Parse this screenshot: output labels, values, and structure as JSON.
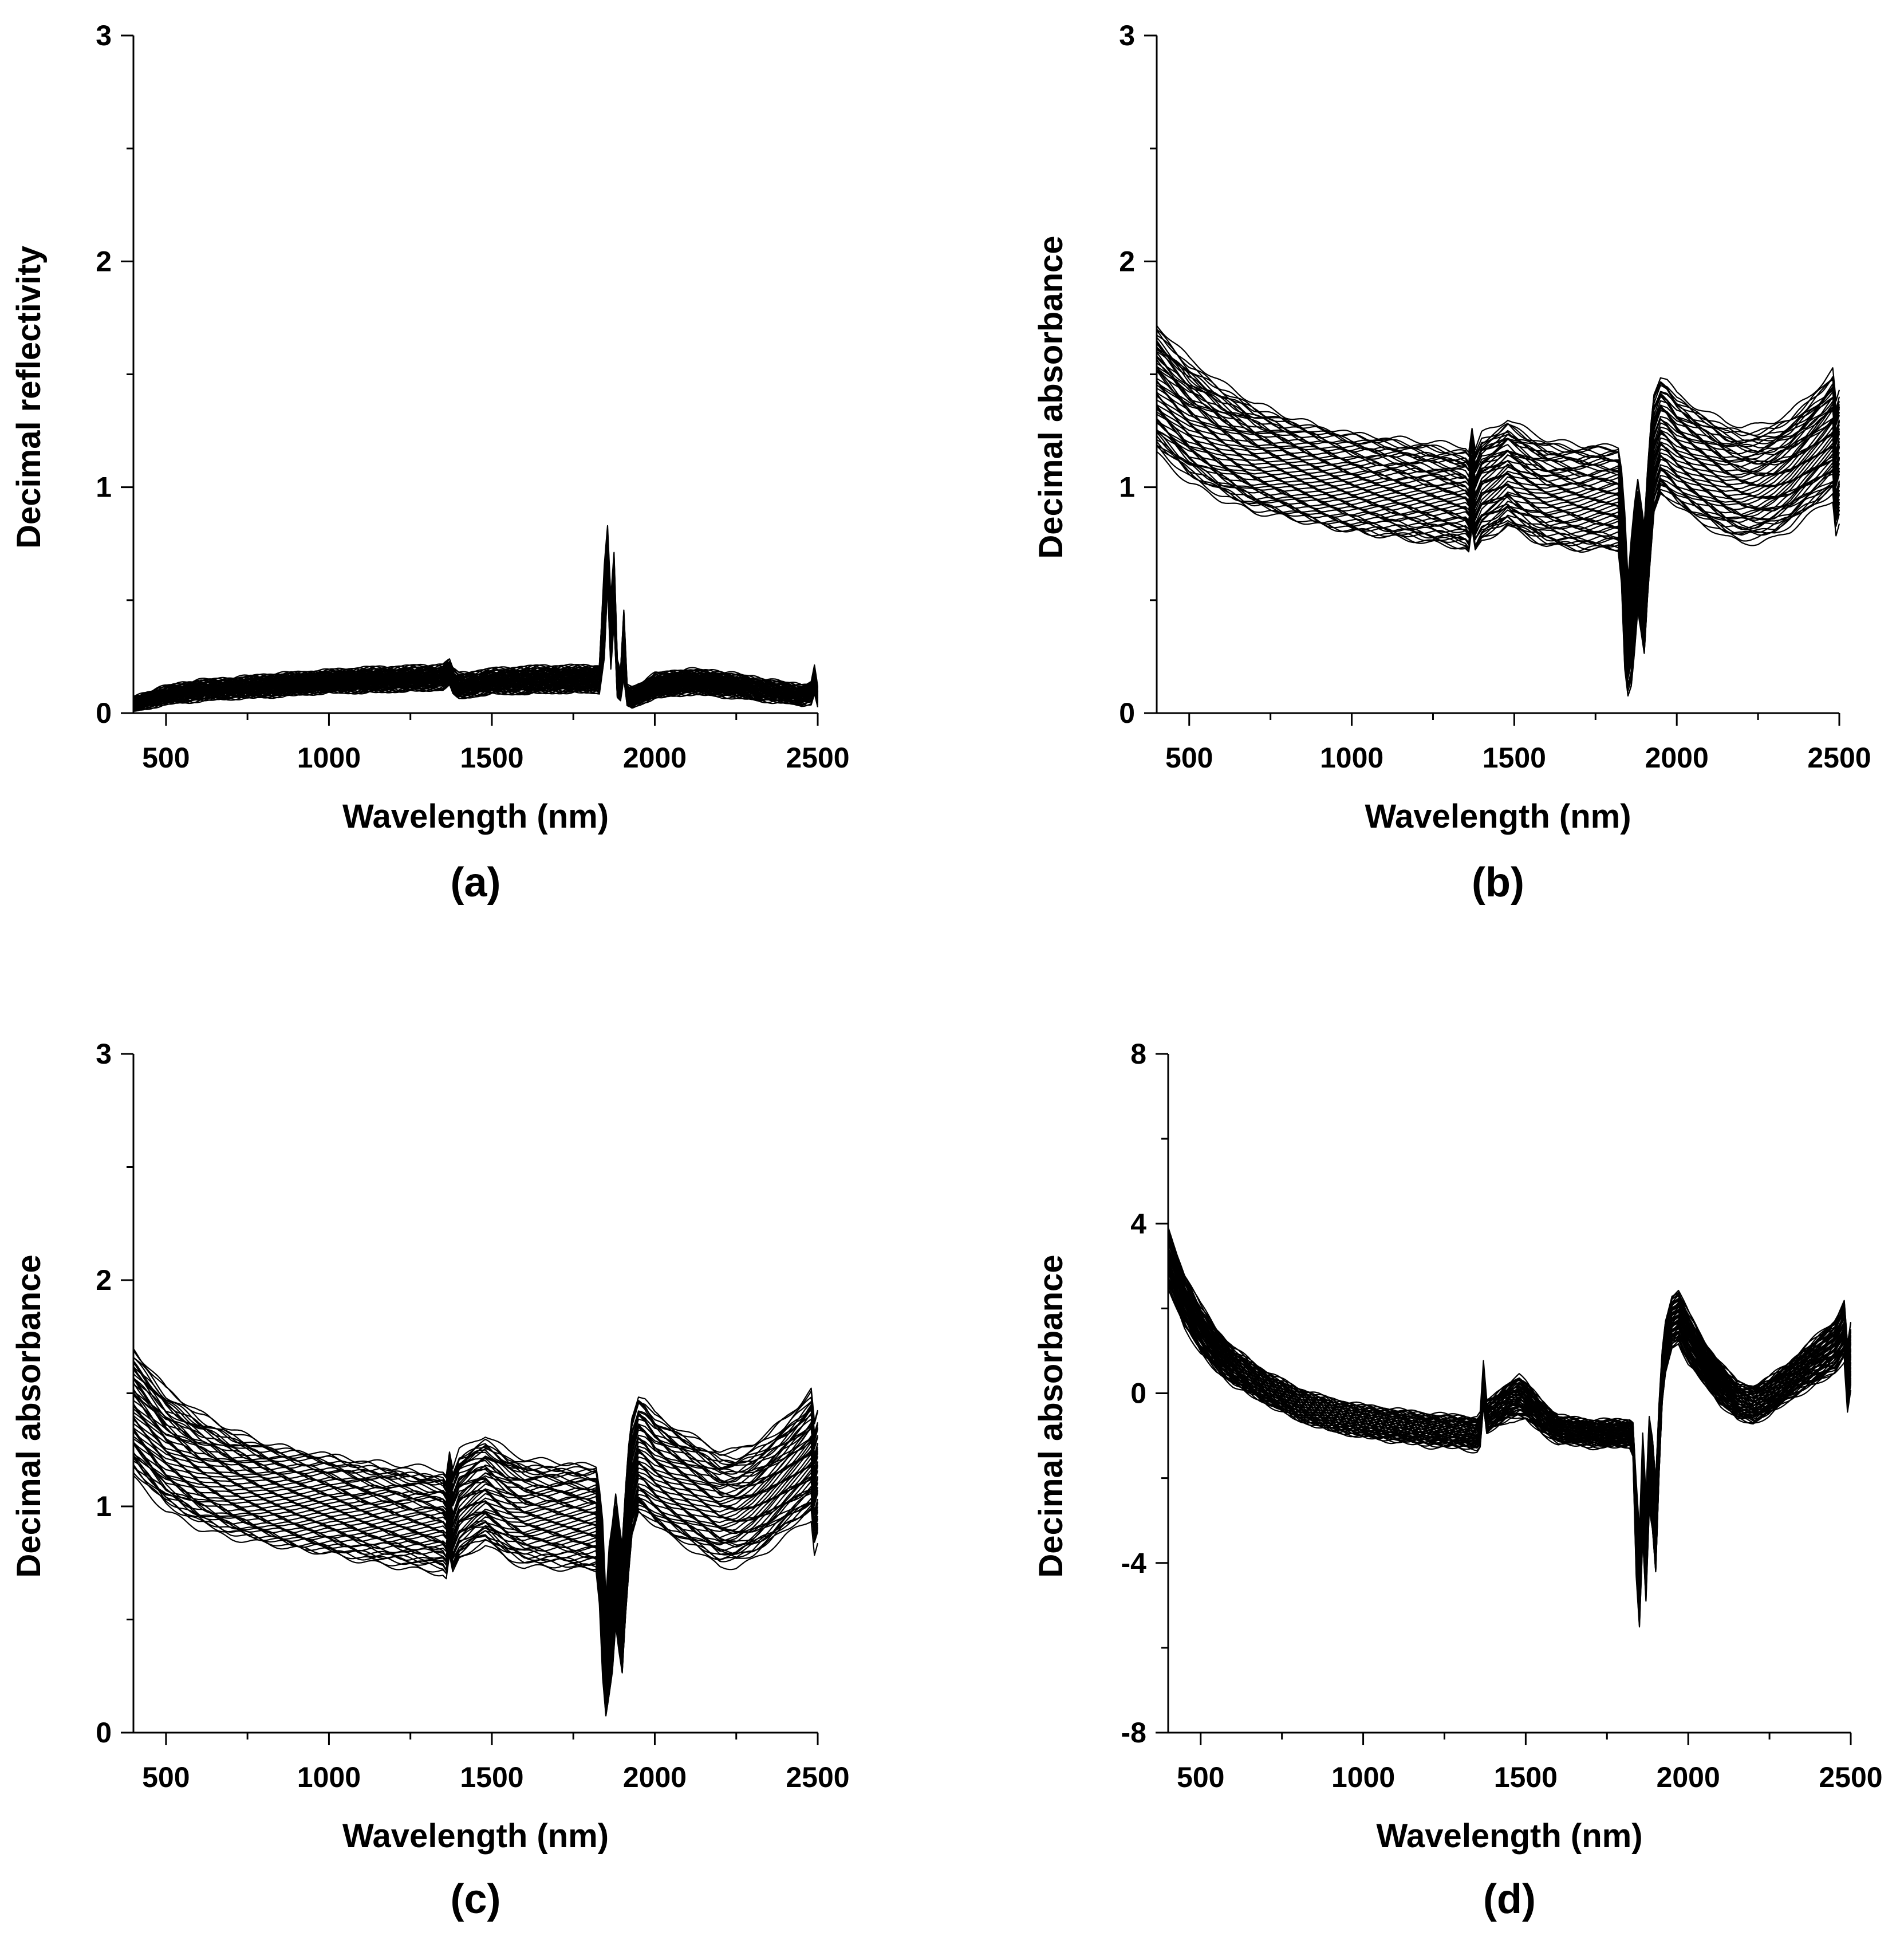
{
  "chart_data": [
    {
      "type": "line",
      "panel_label": "(a)",
      "xlabel": "Wavelength (nm)",
      "ylabel": "Decimal reflectivity",
      "xlim": [
        400,
        2500
      ],
      "ylim": [
        0,
        3
      ],
      "xticks": [
        500,
        1000,
        1500,
        2000,
        2500
      ],
      "xticks_minor": [
        750,
        1250,
        1750,
        2250
      ],
      "yticks": [
        0,
        1,
        2,
        3
      ],
      "yticks_minor": [
        0.5,
        1.5,
        2.5
      ],
      "ytick_labels": [
        "0",
        "1",
        "2",
        "3"
      ],
      "grid": false,
      "legend": "none",
      "series_count": 60,
      "series_spread": [
        -1.0,
        1.0
      ],
      "x": [
        400,
        500,
        600,
        700,
        800,
        900,
        1000,
        1100,
        1200,
        1300,
        1350,
        1370,
        1380,
        1400,
        1450,
        1500,
        1600,
        1700,
        1800,
        1830,
        1845,
        1855,
        1865,
        1875,
        1885,
        1895,
        1905,
        1915,
        1930,
        1960,
        2000,
        2100,
        2200,
        2300,
        2400,
        2450,
        2480,
        2490,
        2500
      ],
      "y_center": [
        0.04,
        0.08,
        0.1,
        0.11,
        0.12,
        0.13,
        0.14,
        0.145,
        0.15,
        0.155,
        0.16,
        0.18,
        0.14,
        0.12,
        0.13,
        0.14,
        0.145,
        0.15,
        0.15,
        0.15,
        0.45,
        0.7,
        0.35,
        0.55,
        0.15,
        0.12,
        0.3,
        0.08,
        0.07,
        0.09,
        0.12,
        0.14,
        0.13,
        0.11,
        0.09,
        0.08,
        0.09,
        0.15,
        0.07
      ],
      "y_halfwidth": [
        0.025,
        0.035,
        0.04,
        0.04,
        0.045,
        0.045,
        0.045,
        0.05,
        0.05,
        0.05,
        0.05,
        0.05,
        0.05,
        0.05,
        0.05,
        0.05,
        0.055,
        0.055,
        0.055,
        0.055,
        0.2,
        0.12,
        0.15,
        0.15,
        0.08,
        0.06,
        0.15,
        0.04,
        0.04,
        0.04,
        0.05,
        0.05,
        0.05,
        0.045,
        0.04,
        0.04,
        0.04,
        0.05,
        0.035
      ]
    },
    {
      "type": "line",
      "panel_label": "(b)",
      "xlabel": "Wavelength (nm)",
      "ylabel": "Decimal absorbance",
      "xlim": [
        400,
        2500
      ],
      "ylim": [
        0,
        3
      ],
      "xticks": [
        500,
        1000,
        1500,
        2000,
        2500
      ],
      "xticks_minor": [
        750,
        1250,
        1750,
        2250
      ],
      "yticks": [
        0,
        1,
        2,
        3
      ],
      "yticks_minor": [
        0.5,
        1.5,
        2.5
      ],
      "ytick_labels": [
        "0",
        "1",
        "2",
        "3"
      ],
      "grid": false,
      "legend": "none",
      "series_count": 60,
      "series_spread": [
        -1.0,
        1.3
      ],
      "x": [
        400,
        500,
        600,
        700,
        800,
        900,
        1000,
        1100,
        1200,
        1300,
        1350,
        1360,
        1370,
        1380,
        1400,
        1450,
        1480,
        1500,
        1550,
        1600,
        1700,
        1800,
        1820,
        1830,
        1840,
        1850,
        1860,
        1870,
        1880,
        1890,
        1900,
        1910,
        1920,
        1930,
        1950,
        1970,
        2000,
        2050,
        2100,
        2150,
        2200,
        2250,
        2300,
        2350,
        2400,
        2450,
        2480,
        2490,
        2500
      ],
      "y_center": [
        1.4,
        1.26,
        1.17,
        1.1,
        1.06,
        1.02,
        0.99,
        0.97,
        0.95,
        0.93,
        0.92,
        0.9,
        1.0,
        0.9,
        0.96,
        1.0,
        1.03,
        1.01,
        0.97,
        0.94,
        0.92,
        0.92,
        0.92,
        0.8,
        0.5,
        0.3,
        0.4,
        0.55,
        0.7,
        0.6,
        0.5,
        0.75,
        0.95,
        1.12,
        1.2,
        1.18,
        1.13,
        1.08,
        1.04,
        1.0,
        0.98,
        0.98,
        1.0,
        1.04,
        1.1,
        1.16,
        1.2,
        1.05,
        1.1
      ],
      "y_halfwidth": [
        0.23,
        0.22,
        0.21,
        0.2,
        0.19,
        0.19,
        0.19,
        0.19,
        0.19,
        0.19,
        0.19,
        0.19,
        0.19,
        0.19,
        0.2,
        0.2,
        0.2,
        0.2,
        0.2,
        0.2,
        0.2,
        0.2,
        0.2,
        0.22,
        0.3,
        0.22,
        0.28,
        0.28,
        0.25,
        0.25,
        0.25,
        0.25,
        0.25,
        0.23,
        0.22,
        0.22,
        0.21,
        0.21,
        0.21,
        0.21,
        0.21,
        0.21,
        0.21,
        0.21,
        0.21,
        0.22,
        0.23,
        0.23,
        0.23
      ]
    },
    {
      "type": "line",
      "panel_label": "(c)",
      "xlabel": "Wavelength (nm)",
      "ylabel": "Decimal absorbance",
      "xlim": [
        400,
        2500
      ],
      "ylim": [
        0,
        3
      ],
      "xticks": [
        500,
        1000,
        1500,
        2000,
        2500
      ],
      "xticks_minor": [
        750,
        1250,
        1750,
        2250
      ],
      "yticks": [
        0,
        1,
        2,
        3
      ],
      "yticks_minor": [
        0.5,
        1.5,
        2.5
      ],
      "ytick_labels": [
        "0",
        "1",
        "2",
        "3"
      ],
      "grid": false,
      "legend": "none",
      "series_count": 60,
      "series_spread": [
        -1.0,
        1.3
      ],
      "x": [
        400,
        500,
        600,
        700,
        800,
        900,
        1000,
        1100,
        1200,
        1300,
        1350,
        1360,
        1370,
        1380,
        1400,
        1450,
        1480,
        1500,
        1550,
        1600,
        1700,
        1800,
        1820,
        1830,
        1840,
        1850,
        1860,
        1870,
        1880,
        1890,
        1900,
        1910,
        1920,
        1930,
        1950,
        1970,
        2000,
        2050,
        2100,
        2150,
        2200,
        2250,
        2300,
        2350,
        2400,
        2450,
        2480,
        2490,
        2500
      ],
      "y_center": [
        1.38,
        1.22,
        1.13,
        1.07,
        1.03,
        1.0,
        0.98,
        0.95,
        0.93,
        0.91,
        0.9,
        0.88,
        0.98,
        0.9,
        0.97,
        1.02,
        1.04,
        1.02,
        0.97,
        0.94,
        0.93,
        0.92,
        0.92,
        0.8,
        0.55,
        0.3,
        0.45,
        0.55,
        0.72,
        0.6,
        0.5,
        0.75,
        0.95,
        1.1,
        1.2,
        1.18,
        1.13,
        1.08,
        1.04,
        1.0,
        0.96,
        0.96,
        0.99,
        1.04,
        1.1,
        1.16,
        1.2,
        1.05,
        1.1
      ],
      "y_halfwidth": [
        0.23,
        0.22,
        0.21,
        0.2,
        0.19,
        0.19,
        0.19,
        0.19,
        0.19,
        0.19,
        0.19,
        0.19,
        0.19,
        0.19,
        0.2,
        0.2,
        0.2,
        0.2,
        0.2,
        0.2,
        0.2,
        0.2,
        0.2,
        0.22,
        0.3,
        0.22,
        0.28,
        0.28,
        0.25,
        0.25,
        0.25,
        0.25,
        0.25,
        0.23,
        0.22,
        0.22,
        0.21,
        0.21,
        0.21,
        0.21,
        0.21,
        0.21,
        0.21,
        0.21,
        0.21,
        0.22,
        0.23,
        0.23,
        0.23
      ]
    },
    {
      "type": "line",
      "panel_label": "(d)",
      "xlabel": "Wavelength (nm)",
      "ylabel": "Decimal absorbance",
      "xlim": [
        400,
        2500
      ],
      "ylim": [
        -8,
        8
      ],
      "xticks": [
        500,
        1000,
        1500,
        2000,
        2500
      ],
      "xticks_minor": [
        750,
        1250,
        1750,
        2250
      ],
      "yticks": [
        -8,
        -4,
        0,
        4,
        8
      ],
      "yticks_minor": [
        -6,
        -2,
        2,
        6
      ],
      "ytick_labels": [
        "-8",
        "-4",
        "0",
        "4",
        "8"
      ],
      "grid": false,
      "legend": "none",
      "series_count": 60,
      "series_spread": [
        -1.4,
        1.0
      ],
      "x": [
        400,
        450,
        500,
        550,
        600,
        700,
        800,
        900,
        1000,
        1100,
        1200,
        1300,
        1350,
        1360,
        1370,
        1380,
        1400,
        1450,
        1480,
        1500,
        1550,
        1600,
        1700,
        1800,
        1820,
        1830,
        1840,
        1850,
        1860,
        1870,
        1880,
        1890,
        1900,
        1910,
        1920,
        1930,
        1950,
        1970,
        2000,
        2050,
        2100,
        2150,
        2200,
        2250,
        2300,
        2350,
        2400,
        2450,
        2480,
        2490,
        2500
      ],
      "y_center": [
        3.3,
        2.3,
        1.6,
        1.1,
        0.7,
        0.2,
        -0.2,
        -0.45,
        -0.6,
        -0.7,
        -0.8,
        -0.85,
        -0.9,
        -0.8,
        0.3,
        -0.5,
        -0.4,
        -0.1,
        0.0,
        -0.1,
        -0.5,
        -0.8,
        -0.9,
        -0.9,
        -0.9,
        -1.0,
        -3.0,
        -4.2,
        -2.0,
        -3.5,
        -1.5,
        -2.0,
        -3.0,
        -1.0,
        0.5,
        1.2,
        1.8,
        1.9,
        1.4,
        0.8,
        0.3,
        -0.1,
        -0.2,
        0.0,
        0.3,
        0.6,
        0.9,
        1.2,
        1.6,
        0.5,
        1.0
      ],
      "y_halfwidth": [
        0.55,
        0.5,
        0.45,
        0.4,
        0.35,
        0.3,
        0.3,
        0.3,
        0.3,
        0.3,
        0.3,
        0.3,
        0.3,
        0.3,
        0.4,
        0.3,
        0.3,
        0.35,
        0.4,
        0.35,
        0.3,
        0.25,
        0.25,
        0.25,
        0.25,
        0.3,
        0.9,
        0.9,
        1.0,
        1.0,
        0.9,
        0.9,
        0.9,
        0.7,
        0.5,
        0.5,
        0.5,
        0.5,
        0.5,
        0.4,
        0.4,
        0.35,
        0.35,
        0.35,
        0.35,
        0.4,
        0.45,
        0.5,
        0.55,
        0.6,
        0.6
      ]
    }
  ]
}
